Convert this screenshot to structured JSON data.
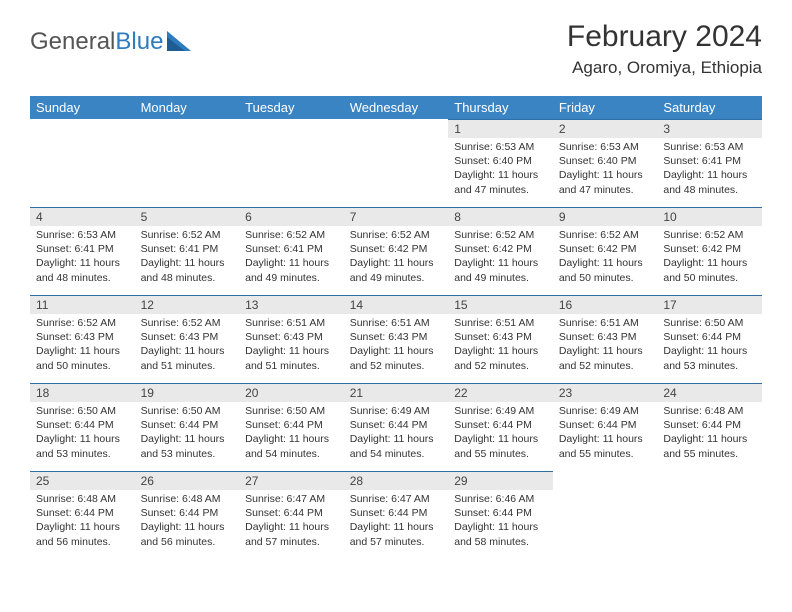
{
  "brand": {
    "name_a": "General",
    "name_b": "Blue"
  },
  "title": "February 2024",
  "location": "Agaro, Oromiya, Ethiopia",
  "columns": [
    "Sunday",
    "Monday",
    "Tuesday",
    "Wednesday",
    "Thursday",
    "Friday",
    "Saturday"
  ],
  "colors": {
    "header_bg": "#3a84c4",
    "header_text": "#ffffff",
    "daynum_bg": "#e9e9e9",
    "daynum_border": "#2f6fa8",
    "logo_blue": "#2f7bbf"
  },
  "weeks": [
    [
      null,
      null,
      null,
      null,
      {
        "n": "1",
        "sr": "6:53 AM",
        "ss": "6:40 PM",
        "dl": "11 hours and 47 minutes."
      },
      {
        "n": "2",
        "sr": "6:53 AM",
        "ss": "6:40 PM",
        "dl": "11 hours and 47 minutes."
      },
      {
        "n": "3",
        "sr": "6:53 AM",
        "ss": "6:41 PM",
        "dl": "11 hours and 48 minutes."
      }
    ],
    [
      {
        "n": "4",
        "sr": "6:53 AM",
        "ss": "6:41 PM",
        "dl": "11 hours and 48 minutes."
      },
      {
        "n": "5",
        "sr": "6:52 AM",
        "ss": "6:41 PM",
        "dl": "11 hours and 48 minutes."
      },
      {
        "n": "6",
        "sr": "6:52 AM",
        "ss": "6:41 PM",
        "dl": "11 hours and 49 minutes."
      },
      {
        "n": "7",
        "sr": "6:52 AM",
        "ss": "6:42 PM",
        "dl": "11 hours and 49 minutes."
      },
      {
        "n": "8",
        "sr": "6:52 AM",
        "ss": "6:42 PM",
        "dl": "11 hours and 49 minutes."
      },
      {
        "n": "9",
        "sr": "6:52 AM",
        "ss": "6:42 PM",
        "dl": "11 hours and 50 minutes."
      },
      {
        "n": "10",
        "sr": "6:52 AM",
        "ss": "6:42 PM",
        "dl": "11 hours and 50 minutes."
      }
    ],
    [
      {
        "n": "11",
        "sr": "6:52 AM",
        "ss": "6:43 PM",
        "dl": "11 hours and 50 minutes."
      },
      {
        "n": "12",
        "sr": "6:52 AM",
        "ss": "6:43 PM",
        "dl": "11 hours and 51 minutes."
      },
      {
        "n": "13",
        "sr": "6:51 AM",
        "ss": "6:43 PM",
        "dl": "11 hours and 51 minutes."
      },
      {
        "n": "14",
        "sr": "6:51 AM",
        "ss": "6:43 PM",
        "dl": "11 hours and 52 minutes."
      },
      {
        "n": "15",
        "sr": "6:51 AM",
        "ss": "6:43 PM",
        "dl": "11 hours and 52 minutes."
      },
      {
        "n": "16",
        "sr": "6:51 AM",
        "ss": "6:43 PM",
        "dl": "11 hours and 52 minutes."
      },
      {
        "n": "17",
        "sr": "6:50 AM",
        "ss": "6:44 PM",
        "dl": "11 hours and 53 minutes."
      }
    ],
    [
      {
        "n": "18",
        "sr": "6:50 AM",
        "ss": "6:44 PM",
        "dl": "11 hours and 53 minutes."
      },
      {
        "n": "19",
        "sr": "6:50 AM",
        "ss": "6:44 PM",
        "dl": "11 hours and 53 minutes."
      },
      {
        "n": "20",
        "sr": "6:50 AM",
        "ss": "6:44 PM",
        "dl": "11 hours and 54 minutes."
      },
      {
        "n": "21",
        "sr": "6:49 AM",
        "ss": "6:44 PM",
        "dl": "11 hours and 54 minutes."
      },
      {
        "n": "22",
        "sr": "6:49 AM",
        "ss": "6:44 PM",
        "dl": "11 hours and 55 minutes."
      },
      {
        "n": "23",
        "sr": "6:49 AM",
        "ss": "6:44 PM",
        "dl": "11 hours and 55 minutes."
      },
      {
        "n": "24",
        "sr": "6:48 AM",
        "ss": "6:44 PM",
        "dl": "11 hours and 55 minutes."
      }
    ],
    [
      {
        "n": "25",
        "sr": "6:48 AM",
        "ss": "6:44 PM",
        "dl": "11 hours and 56 minutes."
      },
      {
        "n": "26",
        "sr": "6:48 AM",
        "ss": "6:44 PM",
        "dl": "11 hours and 56 minutes."
      },
      {
        "n": "27",
        "sr": "6:47 AM",
        "ss": "6:44 PM",
        "dl": "11 hours and 57 minutes."
      },
      {
        "n": "28",
        "sr": "6:47 AM",
        "ss": "6:44 PM",
        "dl": "11 hours and 57 minutes."
      },
      {
        "n": "29",
        "sr": "6:46 AM",
        "ss": "6:44 PM",
        "dl": "11 hours and 58 minutes."
      },
      null,
      null
    ]
  ],
  "labels": {
    "sunrise": "Sunrise: ",
    "sunset": "Sunset: ",
    "daylight": "Daylight: "
  }
}
